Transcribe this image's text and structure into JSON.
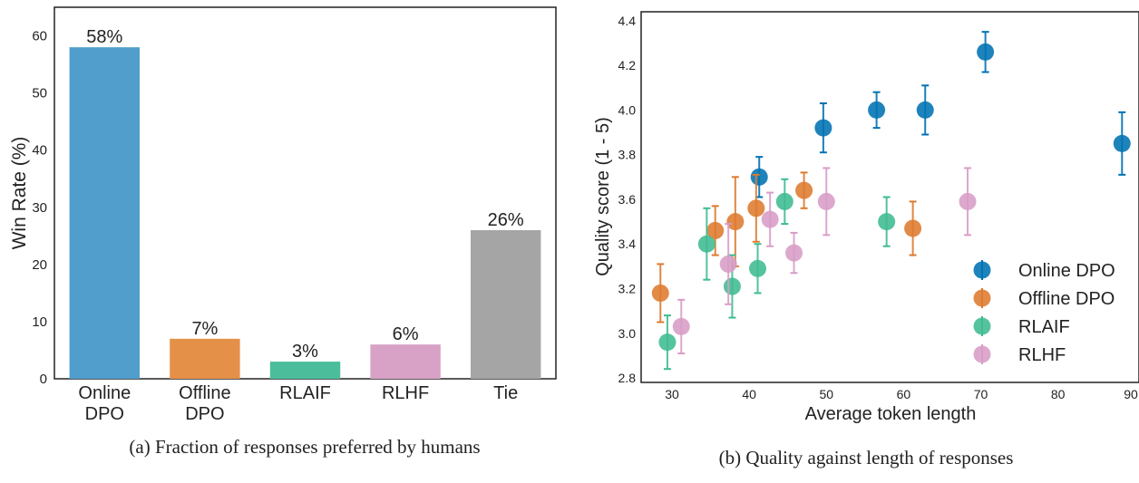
{
  "chart_data": [
    {
      "type": "bar",
      "caption": "(a) Fraction of responses preferred by humans",
      "ylabel": "Win Rate (%)",
      "xlabel": "",
      "ylim": [
        0,
        65
      ],
      "yticks": [
        0,
        10,
        20,
        30,
        40,
        50,
        60
      ],
      "categories": [
        [
          "Online",
          "DPO"
        ],
        [
          "Offline",
          "DPO"
        ],
        [
          "RLAIF"
        ],
        [
          "RLHF"
        ],
        [
          "Tie"
        ]
      ],
      "values": [
        58,
        7,
        3,
        6,
        26
      ],
      "labels": [
        "58%",
        "7%",
        "3%",
        "6%",
        "26%"
      ],
      "colors": [
        "#519dcb",
        "#e49049",
        "#4bbd9b",
        "#d8a2c6",
        "#a5a5a5"
      ],
      "grid": false
    },
    {
      "type": "scatter",
      "caption": "(b) Quality against length of responses",
      "xlabel": "Average token length",
      "ylabel": "Quality score (1 - 5)",
      "xlim": [
        26,
        90.5
      ],
      "ylim": [
        2.78,
        4.44
      ],
      "xticks": [
        30,
        40,
        50,
        60,
        70,
        80,
        90
      ],
      "yticks": [
        2.8,
        3.0,
        3.2,
        3.4,
        3.6,
        3.8,
        4.0,
        4.2,
        4.4
      ],
      "ytick_labels": [
        "2.8",
        "3.0",
        "3.2",
        "3.4",
        "3.6",
        "3.8",
        "4.0",
        "4.2",
        "4.4"
      ],
      "legend_position": "bottom-right",
      "grid": false,
      "series": [
        {
          "name": "Online DPO",
          "color": "#0072b2",
          "points": [
            {
              "x": 41.3,
              "y": 3.7,
              "err": 0.09
            },
            {
              "x": 49.6,
              "y": 3.92,
              "err": 0.11
            },
            {
              "x": 56.5,
              "y": 4.0,
              "err": 0.08
            },
            {
              "x": 62.8,
              "y": 4.0,
              "err": 0.11
            },
            {
              "x": 70.6,
              "y": 4.26,
              "err": 0.09
            },
            {
              "x": 88.3,
              "y": 3.85,
              "err": 0.14
            }
          ]
        },
        {
          "name": "Offline DPO",
          "color": "#de7a2e",
          "points": [
            {
              "x": 28.5,
              "y": 3.18,
              "err": 0.13
            },
            {
              "x": 35.6,
              "y": 3.46,
              "err": 0.11
            },
            {
              "x": 38.2,
              "y": 3.5,
              "err": 0.2
            },
            {
              "x": 40.9,
              "y": 3.56,
              "err": 0.15
            },
            {
              "x": 47.1,
              "y": 3.64,
              "err": 0.08
            },
            {
              "x": 61.2,
              "y": 3.47,
              "err": 0.12
            }
          ]
        },
        {
          "name": "RLAIF",
          "color": "#3fbb92",
          "points": [
            {
              "x": 29.4,
              "y": 2.96,
              "err": 0.12
            },
            {
              "x": 34.5,
              "y": 3.4,
              "err": 0.16
            },
            {
              "x": 37.8,
              "y": 3.21,
              "err": 0.14
            },
            {
              "x": 41.1,
              "y": 3.29,
              "err": 0.11
            },
            {
              "x": 44.6,
              "y": 3.59,
              "err": 0.1
            },
            {
              "x": 57.8,
              "y": 3.5,
              "err": 0.11
            }
          ]
        },
        {
          "name": "RLHF",
          "color": "#d89cc6",
          "points": [
            {
              "x": 31.2,
              "y": 3.03,
              "err": 0.12
            },
            {
              "x": 37.3,
              "y": 3.31,
              "err": 0.18
            },
            {
              "x": 42.7,
              "y": 3.51,
              "err": 0.12
            },
            {
              "x": 45.8,
              "y": 3.36,
              "err": 0.09
            },
            {
              "x": 50.0,
              "y": 3.59,
              "err": 0.15
            },
            {
              "x": 68.3,
              "y": 3.59,
              "err": 0.15
            }
          ]
        }
      ]
    }
  ]
}
